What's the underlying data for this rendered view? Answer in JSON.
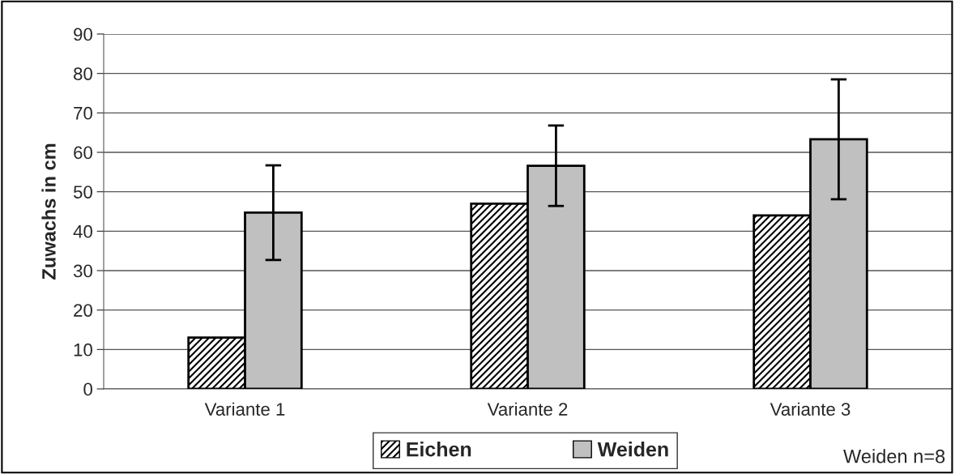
{
  "chart_data": {
    "type": "bar",
    "ylabel": "Zuwachs in cm",
    "categories": [
      "Variante 1",
      "Variante 2",
      "Variante 3"
    ],
    "series": [
      {
        "name": "Eichen",
        "color": "#000000",
        "values": [
          13,
          47,
          44
        ]
      },
      {
        "name": "Weiden",
        "color": "#c0c0c0",
        "values": [
          44.7,
          56.6,
          63.3
        ],
        "errors": [
          12,
          10.2,
          15.2
        ]
      }
    ],
    "ylim": [
      0,
      90
    ],
    "yticks": [
      0,
      10,
      20,
      30,
      40,
      50,
      60,
      70,
      80,
      90
    ],
    "grid": "y",
    "legend": "bottom",
    "annotations": [
      "Weiden n=8"
    ]
  }
}
